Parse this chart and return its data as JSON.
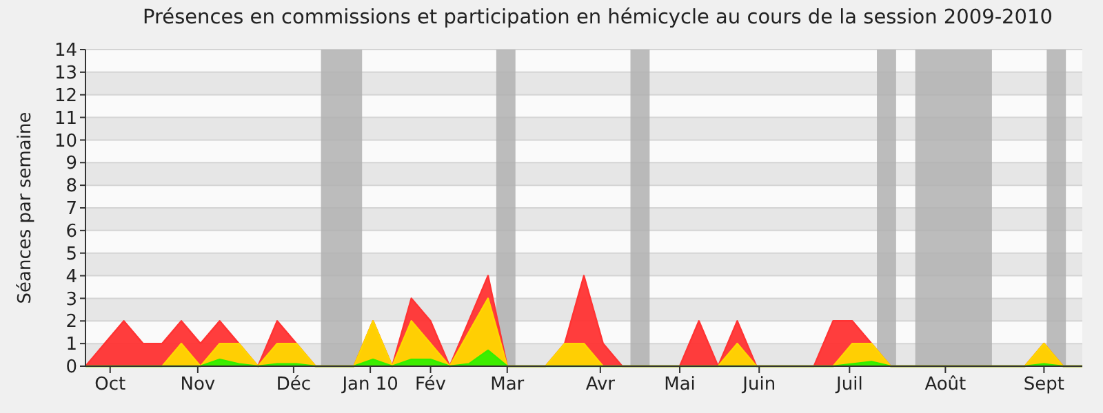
{
  "chart_data": {
    "type": "area",
    "title": "Présences en commissions et participation en hémicycle au cours de la session 2009-2010",
    "ylabel": "Séances par semaine",
    "x": [
      "2009-09-28",
      "2009-10-05",
      "2009-10-12",
      "2009-10-19",
      "2009-10-26",
      "2009-11-02",
      "2009-11-09",
      "2009-11-16",
      "2009-11-23",
      "2009-11-30",
      "2009-12-07",
      "2009-12-14",
      "2009-12-21",
      "2009-12-28",
      "2010-01-04",
      "2010-01-11",
      "2010-01-18",
      "2010-01-25",
      "2010-02-01",
      "2010-02-08",
      "2010-02-15",
      "2010-02-22",
      "2010-03-01",
      "2010-03-08",
      "2010-03-15",
      "2010-03-22",
      "2010-03-29",
      "2010-04-05",
      "2010-04-12",
      "2010-04-19",
      "2010-04-26",
      "2010-05-03",
      "2010-05-10",
      "2010-05-17",
      "2010-05-24",
      "2010-05-31",
      "2010-06-07",
      "2010-06-14",
      "2010-06-21",
      "2010-06-28",
      "2010-07-05",
      "2010-07-12",
      "2010-07-19",
      "2010-07-26",
      "2010-08-02",
      "2010-08-09",
      "2010-08-16",
      "2010-08-23",
      "2010-08-30",
      "2010-09-06",
      "2010-09-13",
      "2010-09-20",
      "2010-09-27"
    ],
    "series": [
      {
        "color": "#ff3333",
        "values": [
          0,
          1,
          2,
          1,
          1,
          2,
          1,
          2,
          1,
          0,
          2,
          1,
          0,
          0,
          0,
          2,
          0,
          3,
          2,
          0,
          2,
          4,
          0,
          0,
          0,
          1,
          4,
          1,
          0,
          0,
          0,
          0,
          2,
          0,
          2,
          0,
          0,
          0,
          0,
          2,
          2,
          1,
          0,
          0,
          0,
          0,
          0,
          0,
          0,
          0,
          1,
          0,
          0
        ]
      },
      {
        "color": "#ffd700",
        "values": [
          0,
          0,
          0,
          0,
          0,
          1,
          0,
          1,
          1,
          0,
          1,
          1,
          0,
          0,
          0,
          2,
          0,
          2,
          1,
          0,
          1.5,
          3,
          0,
          0,
          0,
          1,
          1,
          0,
          0,
          0,
          0,
          0,
          0,
          0,
          1,
          0,
          0,
          0,
          0,
          0,
          1,
          1,
          0,
          0,
          0,
          0,
          0,
          0,
          0,
          0,
          1,
          0,
          0
        ]
      },
      {
        "color": "#33ee00",
        "values": [
          0,
          0,
          0,
          0,
          0,
          0,
          0,
          0.3,
          0.1,
          0,
          0.1,
          0.1,
          0,
          0,
          0,
          0.3,
          0,
          0.3,
          0.3,
          0,
          0.1,
          0.7,
          0,
          0,
          0,
          0,
          0,
          0,
          0,
          0,
          0,
          0,
          0,
          0,
          0,
          0,
          0,
          0,
          0,
          0,
          0.1,
          0.2,
          0,
          0,
          0,
          0,
          0,
          0,
          0,
          0,
          0.1,
          0,
          0
        ]
      }
    ],
    "xlim": [
      "2009-09-28",
      "2010-09-27"
    ],
    "xticks": [
      {
        "value": "2009-10-07",
        "label": "Oct"
      },
      {
        "value": "2009-11-08",
        "label": "Nov"
      },
      {
        "value": "2009-12-13",
        "label": "Déc"
      },
      {
        "value": "2010-01-10",
        "label": "Jan 10"
      },
      {
        "value": "2010-02-01",
        "label": "Fév"
      },
      {
        "value": "2010-03-01",
        "label": "Mar"
      },
      {
        "value": "2010-04-04",
        "label": "Avr"
      },
      {
        "value": "2010-05-03",
        "label": "Mai"
      },
      {
        "value": "2010-06-01",
        "label": "Juin"
      },
      {
        "value": "2010-07-04",
        "label": "Juil"
      },
      {
        "value": "2010-08-08",
        "label": "Août"
      },
      {
        "value": "2010-09-13",
        "label": "Sept"
      }
    ],
    "ylim": [
      0,
      14
    ],
    "yticks": [
      0,
      1,
      2,
      3,
      4,
      5,
      6,
      7,
      8,
      9,
      10,
      11,
      12,
      13,
      14
    ],
    "grid": "y",
    "bands": [
      {
        "axis": "x",
        "from": "2009-12-23",
        "to": "2010-01-07",
        "color": "#b0b0b0"
      },
      {
        "axis": "x",
        "from": "2010-02-25",
        "to": "2010-03-04",
        "color": "#b0b0b0"
      },
      {
        "axis": "x",
        "from": "2010-04-15",
        "to": "2010-04-22",
        "color": "#b0b0b0"
      },
      {
        "axis": "x",
        "from": "2010-07-14",
        "to": "2010-07-21",
        "color": "#b0b0b0"
      },
      {
        "axis": "x",
        "from": "2010-07-28",
        "to": "2010-08-25",
        "color": "#b0b0b0"
      },
      {
        "axis": "x",
        "from": "2010-09-14",
        "to": "2010-09-21",
        "color": "#b0b0b0"
      }
    ]
  }
}
